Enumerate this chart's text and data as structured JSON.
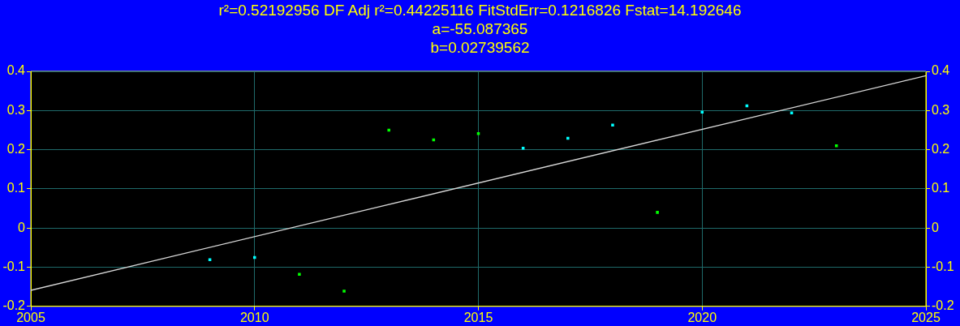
{
  "chart_data": {
    "type": "scatter",
    "title": "r²=0.52192956  DF Adj r²=0.44225116  FitStdErr=0.1216826  Fstat=14.192646",
    "subtitle": "a=-55.087365",
    "annotations": [
      "b=0.02739562"
    ],
    "xlim": [
      2005,
      2025
    ],
    "xticks": [
      2005,
      2010,
      2015,
      2020,
      2025
    ],
    "ylim": [
      -0.2,
      0.4
    ],
    "yticks": [
      -0.2,
      -0.1,
      0,
      0.1,
      0.2,
      0.3,
      0.4
    ],
    "y2lim": [
      -0.2,
      0.4
    ],
    "y2ticks": [
      -0.2,
      -0.1,
      0,
      0.1,
      0.2,
      0.3,
      0.4
    ],
    "grid": true,
    "legend": false,
    "marker": "square",
    "series": [
      {
        "x": [
          2009,
          2010,
          2011,
          2012,
          2013,
          2014,
          2015,
          2016,
          2017,
          2018,
          2019,
          2020,
          2021,
          2022,
          2023
        ],
        "values": [
          -0.081,
          -0.075,
          -0.118,
          -0.161,
          0.25,
          0.225,
          0.241,
          0.204,
          0.229,
          0.263,
          0.04,
          0.296,
          0.312,
          0.294,
          0.21
        ],
        "colors": [
          "#00ffff",
          "#00ffff",
          "#00ff00",
          "#00ff00",
          "#00ff00",
          "#00ff00",
          "#00ff00",
          "#00ffff",
          "#00ffff",
          "#00ffff",
          "#00ff00",
          "#00ffff",
          "#00ffff",
          "#00ffff",
          "#00ff00"
        ]
      },
      {
        "type": "line",
        "x": [
          2005,
          2025
        ],
        "values": [
          -0.159,
          0.389
        ],
        "color": "#d8d8d8",
        "line_style": "solid",
        "marker": "none"
      }
    ]
  }
}
